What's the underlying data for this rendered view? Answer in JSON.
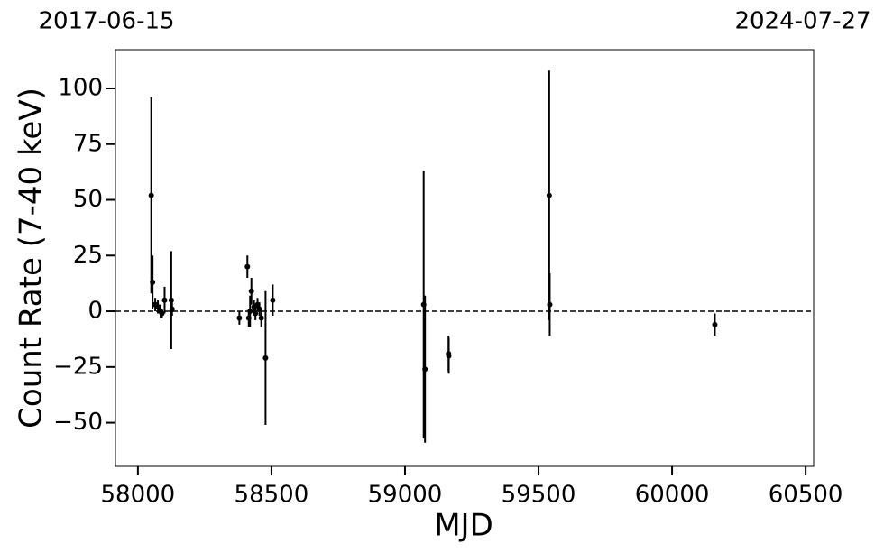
{
  "chart_data": {
    "type": "errorbar",
    "xlabel": "MJD",
    "ylabel": "Count Rate (7-40 keV)",
    "annotations": [
      "2017-06-15",
      "2024-07-27"
    ],
    "xlim": [
      57916,
      60530
    ],
    "xticks": [
      58000,
      58500,
      59000,
      59500,
      60000,
      60500
    ],
    "ylim": [
      -69.6,
      117.4
    ],
    "yticks": [
      -50,
      -25,
      0,
      25,
      50,
      75,
      100
    ],
    "hline": 0,
    "series": [
      {
        "color": "#000000",
        "x": [
          58050,
          58055,
          58065,
          58075,
          58085,
          58090,
          58100,
          58125,
          58128,
          58380,
          58410,
          58415,
          58420,
          58425,
          58435,
          58440,
          58448,
          58455,
          58462,
          58478,
          58505,
          59070,
          59075,
          59163,
          59164,
          59540,
          59542,
          60160
        ],
        "values": [
          52,
          13,
          3,
          2,
          0,
          -1,
          5,
          5,
          1,
          -3,
          20,
          -3,
          0,
          9,
          2,
          -1,
          3,
          1,
          -3,
          -21,
          5,
          3,
          -26,
          -19,
          -20,
          52,
          3,
          -6
        ],
        "errors": [
          44,
          12,
          3,
          3,
          3,
          2,
          6,
          22,
          3,
          3,
          5,
          4,
          7,
          6,
          3,
          3,
          3,
          3,
          4,
          30,
          7,
          60,
          33,
          8,
          8,
          56,
          14,
          5
        ]
      }
    ]
  }
}
